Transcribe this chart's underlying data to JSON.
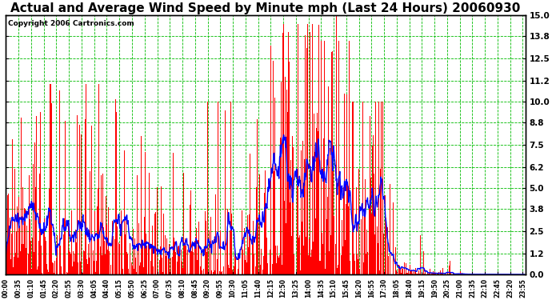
{
  "title": "Actual and Average Wind Speed by Minute mph (Last 24 Hours) 20060930",
  "copyright": "Copyright 2006 Cartronics.com",
  "background_color": "#ffffff",
  "plot_bg_color": "#ffffff",
  "bar_color": "#ff0000",
  "line_color": "#0000ff",
  "grid_color": "#00bb00",
  "yticks": [
    0.0,
    1.2,
    2.5,
    3.8,
    5.0,
    6.2,
    7.5,
    8.8,
    10.0,
    11.2,
    12.5,
    13.8,
    15.0
  ],
  "ylim": [
    0.0,
    15.0
  ],
  "title_fontsize": 11,
  "copyright_fontsize": 6.5,
  "tick_interval": 35,
  "n_minutes": 1440
}
